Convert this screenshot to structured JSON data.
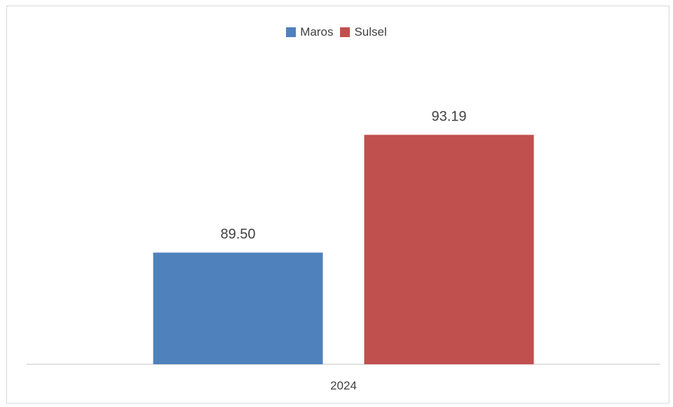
{
  "chart_data": {
    "type": "bar",
    "categories": [
      "2024"
    ],
    "series": [
      {
        "name": "Maros",
        "values": [
          89.5
        ],
        "label": "89.50",
        "color": "#4F81BD"
      },
      {
        "name": "Sulsel",
        "values": [
          93.19
        ],
        "label": "93.19",
        "color": "#C0504D"
      }
    ],
    "ylim": [
      86,
      95
    ],
    "grid": false,
    "legend_position": "top-center",
    "title": "",
    "xlabel": "",
    "ylabel": ""
  },
  "legend": {
    "items": [
      {
        "label": "Maros",
        "color": "#4F81BD"
      },
      {
        "label": "Sulsel",
        "color": "#C0504D"
      }
    ]
  }
}
